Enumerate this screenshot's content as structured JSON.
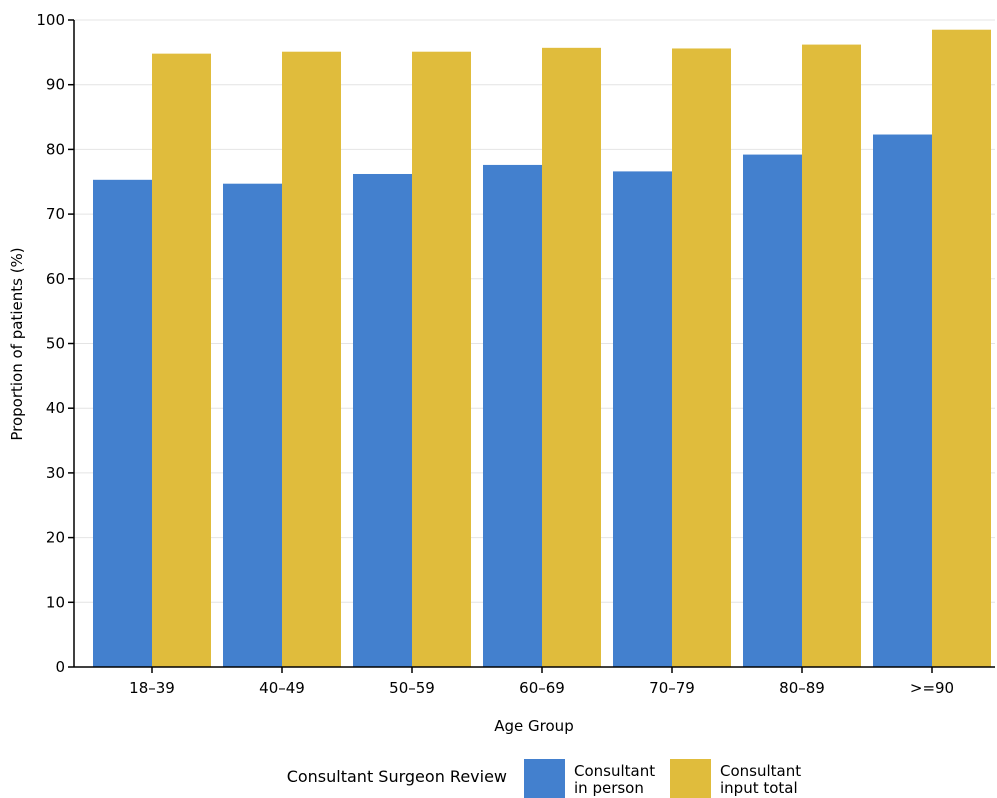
{
  "chart_data": {
    "type": "bar",
    "title": "",
    "xlabel": "Age Group",
    "ylabel": "Proportion of patients (%)",
    "ylim": [
      0,
      100
    ],
    "yticks": [
      0,
      10,
      20,
      30,
      40,
      50,
      60,
      70,
      80,
      90,
      100
    ],
    "grid": true,
    "categories": [
      "18–39",
      "40–49",
      "50–59",
      "60–69",
      "70–79",
      "80–89",
      ">=90"
    ],
    "series": [
      {
        "name_lines": [
          "Consultant",
          "in person"
        ],
        "color": "#4380CE",
        "values": [
          75.3,
          74.7,
          76.2,
          77.6,
          76.6,
          79.2,
          82.3
        ]
      },
      {
        "name_lines": [
          "Consultant",
          "input total"
        ],
        "color": "#E0BC3C",
        "values": [
          94.8,
          95.1,
          95.1,
          95.7,
          95.6,
          96.2,
          98.5
        ]
      }
    ],
    "legend": {
      "title": "Consultant Surgeon Review",
      "position": "bottom"
    }
  }
}
